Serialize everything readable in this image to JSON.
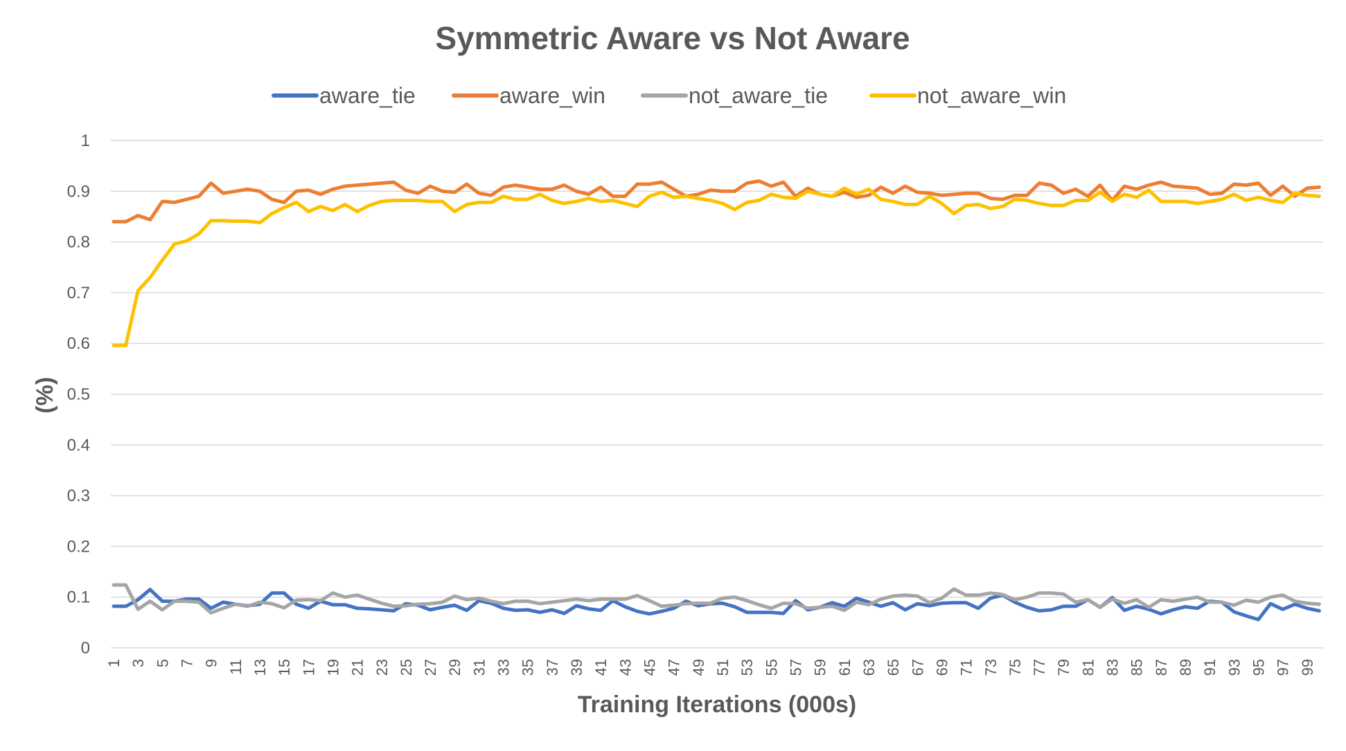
{
  "chart_data": {
    "type": "line",
    "title": "Symmetric Aware vs Not Aware",
    "xlabel": "Training Iterations (000s)",
    "ylabel": "(%)",
    "ylim": [
      0,
      1
    ],
    "yticks": [
      "0",
      "0.1",
      "0.2",
      "0.3",
      "0.4",
      "0.5",
      "0.6",
      "0.7",
      "0.8",
      "0.9",
      "1"
    ],
    "x": [
      1,
      2,
      3,
      4,
      5,
      6,
      7,
      8,
      9,
      10,
      11,
      12,
      13,
      14,
      15,
      16,
      17,
      18,
      19,
      20,
      21,
      22,
      23,
      24,
      25,
      26,
      27,
      28,
      29,
      30,
      31,
      32,
      33,
      34,
      35,
      36,
      37,
      38,
      39,
      40,
      41,
      42,
      43,
      44,
      45,
      46,
      47,
      48,
      49,
      50,
      51,
      52,
      53,
      54,
      55,
      56,
      57,
      58,
      59,
      60,
      61,
      62,
      63,
      64,
      65,
      66,
      67,
      68,
      69,
      70,
      71,
      72,
      73,
      74,
      75,
      76,
      77,
      78,
      79,
      80,
      81,
      82,
      83,
      84,
      85,
      86,
      87,
      88,
      89,
      90,
      91,
      92,
      93,
      94,
      95,
      96,
      97,
      98,
      99,
      100
    ],
    "xtick_labels": [
      "1",
      "3",
      "5",
      "7",
      "9",
      "11",
      "13",
      "15",
      "17",
      "19",
      "21",
      "23",
      "25",
      "27",
      "29",
      "31",
      "33",
      "35",
      "37",
      "39",
      "41",
      "43",
      "45",
      "47",
      "49",
      "51",
      "53",
      "55",
      "57",
      "59",
      "61",
      "63",
      "65",
      "67",
      "69",
      "71",
      "73",
      "75",
      "77",
      "79",
      "81",
      "83",
      "85",
      "87",
      "89",
      "91",
      "93",
      "95",
      "97",
      "99"
    ],
    "grid": true,
    "legend_position": "top",
    "series": [
      {
        "name": "aware_tie",
        "color": "#4472C4",
        "values": [
          0.082,
          0.082,
          0.095,
          0.115,
          0.092,
          0.092,
          0.096,
          0.096,
          0.078,
          0.09,
          0.086,
          0.083,
          0.086,
          0.108,
          0.108,
          0.086,
          0.078,
          0.092,
          0.085,
          0.085,
          0.078,
          0.077,
          0.075,
          0.073,
          0.087,
          0.084,
          0.075,
          0.08,
          0.084,
          0.074,
          0.093,
          0.088,
          0.078,
          0.074,
          0.075,
          0.07,
          0.075,
          0.068,
          0.083,
          0.077,
          0.074,
          0.093,
          0.081,
          0.072,
          0.067,
          0.072,
          0.078,
          0.092,
          0.083,
          0.087,
          0.088,
          0.081,
          0.07,
          0.07,
          0.07,
          0.068,
          0.093,
          0.075,
          0.08,
          0.089,
          0.082,
          0.098,
          0.09,
          0.082,
          0.089,
          0.075,
          0.087,
          0.083,
          0.088,
          0.089,
          0.089,
          0.078,
          0.098,
          0.104,
          0.09,
          0.08,
          0.073,
          0.075,
          0.082,
          0.082,
          0.095,
          0.08,
          0.099,
          0.074,
          0.082,
          0.076,
          0.067,
          0.075,
          0.081,
          0.078,
          0.092,
          0.09,
          0.071,
          0.063,
          0.056,
          0.087,
          0.076,
          0.086,
          0.078,
          0.073
        ]
      },
      {
        "name": "aware_win",
        "color": "#ED7D31",
        "values": [
          0.84,
          0.84,
          0.852,
          0.844,
          0.88,
          0.878,
          0.884,
          0.89,
          0.916,
          0.896,
          0.9,
          0.904,
          0.9,
          0.884,
          0.878,
          0.9,
          0.902,
          0.894,
          0.904,
          0.91,
          0.912,
          0.914,
          0.916,
          0.918,
          0.902,
          0.896,
          0.91,
          0.9,
          0.898,
          0.914,
          0.896,
          0.892,
          0.908,
          0.912,
          0.908,
          0.904,
          0.904,
          0.912,
          0.9,
          0.894,
          0.908,
          0.89,
          0.89,
          0.914,
          0.914,
          0.918,
          0.904,
          0.89,
          0.894,
          0.902,
          0.9,
          0.9,
          0.916,
          0.92,
          0.91,
          0.918,
          0.89,
          0.906,
          0.894,
          0.89,
          0.898,
          0.888,
          0.892,
          0.908,
          0.896,
          0.91,
          0.898,
          0.896,
          0.892,
          0.894,
          0.896,
          0.896,
          0.886,
          0.884,
          0.892,
          0.892,
          0.916,
          0.912,
          0.896,
          0.904,
          0.89,
          0.912,
          0.882,
          0.91,
          0.904,
          0.912,
          0.918,
          0.91,
          0.908,
          0.906,
          0.894,
          0.896,
          0.914,
          0.912,
          0.916,
          0.892,
          0.91,
          0.89,
          0.906,
          0.908
        ]
      },
      {
        "name": "not_aware_tie",
        "color": "#A5A5A5",
        "values": [
          0.124,
          0.124,
          0.076,
          0.092,
          0.075,
          0.092,
          0.092,
          0.09,
          0.069,
          0.078,
          0.086,
          0.082,
          0.09,
          0.087,
          0.079,
          0.094,
          0.095,
          0.093,
          0.108,
          0.1,
          0.104,
          0.096,
          0.088,
          0.082,
          0.083,
          0.086,
          0.087,
          0.09,
          0.102,
          0.095,
          0.098,
          0.092,
          0.087,
          0.092,
          0.092,
          0.087,
          0.09,
          0.093,
          0.096,
          0.093,
          0.096,
          0.096,
          0.096,
          0.103,
          0.093,
          0.082,
          0.084,
          0.087,
          0.088,
          0.088,
          0.098,
          0.1,
          0.093,
          0.085,
          0.078,
          0.088,
          0.087,
          0.078,
          0.08,
          0.082,
          0.074,
          0.09,
          0.085,
          0.096,
          0.102,
          0.104,
          0.102,
          0.089,
          0.098,
          0.116,
          0.104,
          0.104,
          0.108,
          0.105,
          0.095,
          0.1,
          0.108,
          0.108,
          0.106,
          0.09,
          0.095,
          0.08,
          0.096,
          0.088,
          0.095,
          0.08,
          0.095,
          0.092,
          0.096,
          0.1,
          0.09,
          0.09,
          0.084,
          0.094,
          0.09,
          0.1,
          0.104,
          0.092,
          0.088,
          0.086
        ]
      },
      {
        "name": "not_aware_win",
        "color": "#FFC000",
        "values": [
          0.596,
          0.596,
          0.704,
          0.73,
          0.764,
          0.796,
          0.802,
          0.816,
          0.842,
          0.842,
          0.841,
          0.841,
          0.838,
          0.856,
          0.868,
          0.878,
          0.86,
          0.87,
          0.862,
          0.874,
          0.86,
          0.872,
          0.88,
          0.882,
          0.882,
          0.882,
          0.88,
          0.88,
          0.86,
          0.874,
          0.878,
          0.878,
          0.89,
          0.884,
          0.884,
          0.894,
          0.882,
          0.876,
          0.88,
          0.886,
          0.88,
          0.882,
          0.876,
          0.87,
          0.89,
          0.898,
          0.888,
          0.89,
          0.886,
          0.882,
          0.876,
          0.864,
          0.878,
          0.882,
          0.894,
          0.888,
          0.886,
          0.9,
          0.894,
          0.89,
          0.906,
          0.894,
          0.904,
          0.884,
          0.88,
          0.874,
          0.874,
          0.89,
          0.876,
          0.856,
          0.872,
          0.874,
          0.866,
          0.87,
          0.884,
          0.882,
          0.876,
          0.872,
          0.872,
          0.882,
          0.882,
          0.898,
          0.88,
          0.894,
          0.888,
          0.902,
          0.88,
          0.88,
          0.88,
          0.876,
          0.88,
          0.884,
          0.894,
          0.882,
          0.888,
          0.882,
          0.878,
          0.896,
          0.892,
          0.89
        ]
      }
    ]
  },
  "colors": {
    "gridline": "#D9D9D9",
    "text": "#595959",
    "background": "#FFFFFF"
  }
}
